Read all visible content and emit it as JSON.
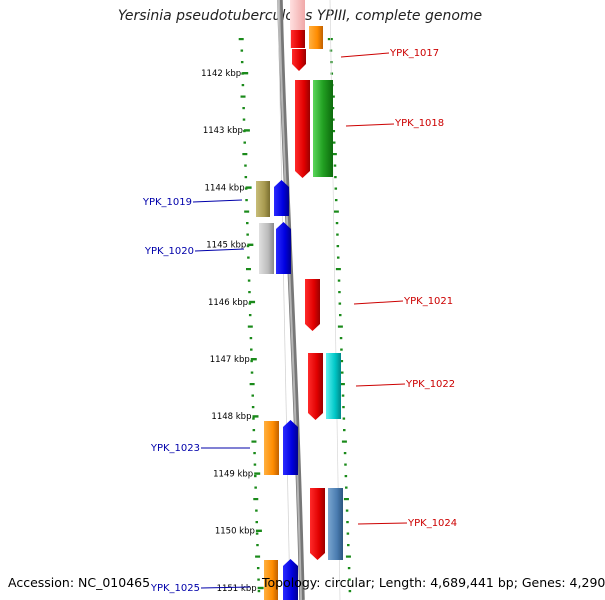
{
  "title": "Yersinia pseudotuberculosis YPIII, complete genome",
  "footer": {
    "accession": "Accession: NC_010465",
    "summary": "Topology: circular; Length: 4,689,441 bp; Genes: 4,290"
  },
  "ruler": {
    "unit": "kbp",
    "ticks": [
      {
        "kbp": 1142,
        "label": "1142 kbp"
      },
      {
        "kbp": 1143,
        "label": "1143 kbp"
      },
      {
        "kbp": 1144,
        "label": "1144 kbp"
      },
      {
        "kbp": 1145,
        "label": "1145 kbp"
      },
      {
        "kbp": 1146,
        "label": "1146 kbp"
      },
      {
        "kbp": 1147,
        "label": "1147 kbp"
      },
      {
        "kbp": 1148,
        "label": "1148 kbp"
      },
      {
        "kbp": 1149,
        "label": "1149 kbp"
      },
      {
        "kbp": 1150,
        "label": "1150 kbp"
      },
      {
        "kbp": 1151,
        "label": "1151 kbp"
      }
    ]
  },
  "colors": {
    "forward_label": "#cc0000",
    "reverse_label": "#0000aa",
    "tick": "#1a8a1a",
    "backbone": "#8a8a8a"
  },
  "genes": [
    {
      "label": "YPK_1017",
      "strand": "forward"
    },
    {
      "label": "YPK_1018",
      "strand": "forward"
    },
    {
      "label": "YPK_1019",
      "strand": "reverse"
    },
    {
      "label": "YPK_1020",
      "strand": "reverse"
    },
    {
      "label": "YPK_1021",
      "strand": "forward"
    },
    {
      "label": "YPK_1022",
      "strand": "forward"
    },
    {
      "label": "YPK_1023",
      "strand": "reverse"
    },
    {
      "label": "YPK_1024",
      "strand": "forward"
    },
    {
      "label": "YPK_1025",
      "strand": "reverse"
    }
  ]
}
